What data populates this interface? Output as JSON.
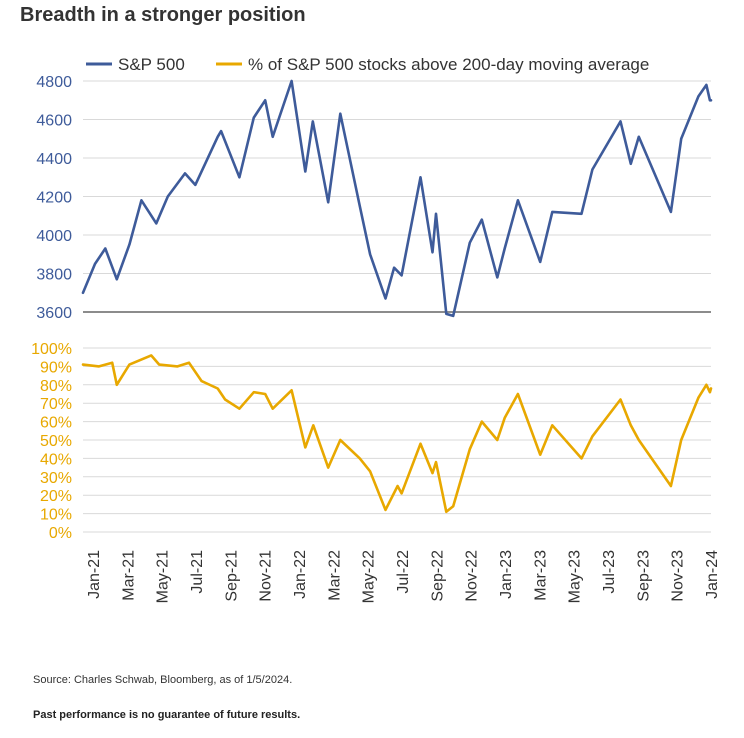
{
  "title": "Breadth in a stronger position",
  "source": "Source: Charles Schwab, Bloomberg, as of 1/5/2024.",
  "disclaimer": "Past performance is no guarantee of future results.",
  "chart_data": {
    "type": "line",
    "title": "Breadth in a stronger position",
    "legend_position": "top",
    "grid": true,
    "x_tick_labels": [
      "Jan-21",
      "Mar-21",
      "May-21",
      "Jul-21",
      "Sep-21",
      "Nov-21",
      "Jan-22",
      "Mar-22",
      "May-22",
      "Jul-22",
      "Sep-22",
      "Nov-22",
      "Jan-23",
      "Mar-23",
      "May-23",
      "Jul-23",
      "Sep-23",
      "Nov-23",
      "Jan-24"
    ],
    "x_range": [
      "2021-01-04",
      "2024-01-05"
    ],
    "panels": [
      {
        "series_name": "S&P 500",
        "color": "#3e5b9a",
        "ylim": [
          3600,
          4800
        ],
        "yticks": [
          3600,
          3800,
          4000,
          4200,
          4400,
          4600,
          4800
        ],
        "ytick_labels": [
          "3600",
          "3800",
          "4000",
          "4200",
          "4400",
          "4600",
          "4800"
        ],
        "points": [
          [
            "2021-01-04",
            3700
          ],
          [
            "2021-01-25",
            3850
          ],
          [
            "2021-02-12",
            3930
          ],
          [
            "2021-03-04",
            3770
          ],
          [
            "2021-03-26",
            3950
          ],
          [
            "2021-04-16",
            4180
          ],
          [
            "2021-05-12",
            4060
          ],
          [
            "2021-06-01",
            4200
          ],
          [
            "2021-07-01",
            4320
          ],
          [
            "2021-07-19",
            4260
          ],
          [
            "2021-08-27",
            4510
          ],
          [
            "2021-09-02",
            4540
          ],
          [
            "2021-10-04",
            4300
          ],
          [
            "2021-10-29",
            4610
          ],
          [
            "2021-11-18",
            4700
          ],
          [
            "2021-12-01",
            4510
          ],
          [
            "2022-01-03",
            4800
          ],
          [
            "2022-01-27",
            4330
          ],
          [
            "2022-02-09",
            4590
          ],
          [
            "2022-03-08",
            4170
          ],
          [
            "2022-03-29",
            4630
          ],
          [
            "2022-05-02",
            4150
          ],
          [
            "2022-05-20",
            3900
          ],
          [
            "2022-06-16",
            3670
          ],
          [
            "2022-07-01",
            3830
          ],
          [
            "2022-07-14",
            3790
          ],
          [
            "2022-08-16",
            4300
          ],
          [
            "2022-09-06",
            3910
          ],
          [
            "2022-09-12",
            4110
          ],
          [
            "2022-09-30",
            3590
          ],
          [
            "2022-10-12",
            3580
          ],
          [
            "2022-11-10",
            3960
          ],
          [
            "2022-12-01",
            4080
          ],
          [
            "2022-12-28",
            3780
          ],
          [
            "2023-01-10",
            3930
          ],
          [
            "2023-02-02",
            4180
          ],
          [
            "2023-03-13",
            3860
          ],
          [
            "2023-04-03",
            4120
          ],
          [
            "2023-05-24",
            4110
          ],
          [
            "2023-06-12",
            4340
          ],
          [
            "2023-07-31",
            4590
          ],
          [
            "2023-08-18",
            4370
          ],
          [
            "2023-09-01",
            4510
          ],
          [
            "2023-10-27",
            4120
          ],
          [
            "2023-11-14",
            4500
          ],
          [
            "2023-12-14",
            4720
          ],
          [
            "2023-12-28",
            4780
          ],
          [
            "2024-01-03",
            4700
          ],
          [
            "2024-01-05",
            4700
          ]
        ]
      },
      {
        "series_name": "% of S&P 500 stocks above 200-day moving average",
        "color": "#e8a800",
        "ylim": [
          0,
          100
        ],
        "yticks": [
          0,
          10,
          20,
          30,
          40,
          50,
          60,
          70,
          80,
          90,
          100
        ],
        "ytick_labels": [
          "0%",
          "10%",
          "20%",
          "30%",
          "40%",
          "50%",
          "60%",
          "70%",
          "80%",
          "90%",
          "100%"
        ],
        "points": [
          [
            "2021-01-04",
            91
          ],
          [
            "2021-02-01",
            90
          ],
          [
            "2021-02-24",
            92
          ],
          [
            "2021-03-04",
            80
          ],
          [
            "2021-03-26",
            91
          ],
          [
            "2021-05-03",
            96
          ],
          [
            "2021-05-17",
            91
          ],
          [
            "2021-06-18",
            90
          ],
          [
            "2021-07-08",
            92
          ],
          [
            "2021-07-30",
            82
          ],
          [
            "2021-08-27",
            78
          ],
          [
            "2021-09-09",
            72
          ],
          [
            "2021-10-04",
            67
          ],
          [
            "2021-10-29",
            76
          ],
          [
            "2021-11-18",
            75
          ],
          [
            "2021-12-01",
            67
          ],
          [
            "2022-01-03",
            77
          ],
          [
            "2022-01-27",
            46
          ],
          [
            "2022-02-10",
            58
          ],
          [
            "2022-03-08",
            35
          ],
          [
            "2022-03-29",
            50
          ],
          [
            "2022-05-02",
            40
          ],
          [
            "2022-05-20",
            33
          ],
          [
            "2022-06-16",
            12
          ],
          [
            "2022-07-07",
            25
          ],
          [
            "2022-07-14",
            21
          ],
          [
            "2022-08-16",
            48
          ],
          [
            "2022-09-06",
            32
          ],
          [
            "2022-09-12",
            38
          ],
          [
            "2022-09-30",
            11
          ],
          [
            "2022-10-12",
            14
          ],
          [
            "2022-11-10",
            45
          ],
          [
            "2022-12-01",
            60
          ],
          [
            "2022-12-28",
            50
          ],
          [
            "2023-01-10",
            62
          ],
          [
            "2023-02-02",
            75
          ],
          [
            "2023-03-13",
            42
          ],
          [
            "2023-04-03",
            58
          ],
          [
            "2023-05-24",
            40
          ],
          [
            "2023-06-12",
            52
          ],
          [
            "2023-07-31",
            72
          ],
          [
            "2023-08-18",
            58
          ],
          [
            "2023-09-01",
            50
          ],
          [
            "2023-10-27",
            25
          ],
          [
            "2023-11-14",
            50
          ],
          [
            "2023-12-14",
            73
          ],
          [
            "2023-12-28",
            80
          ],
          [
            "2024-01-03",
            76
          ],
          [
            "2024-01-05",
            78
          ]
        ]
      }
    ]
  }
}
